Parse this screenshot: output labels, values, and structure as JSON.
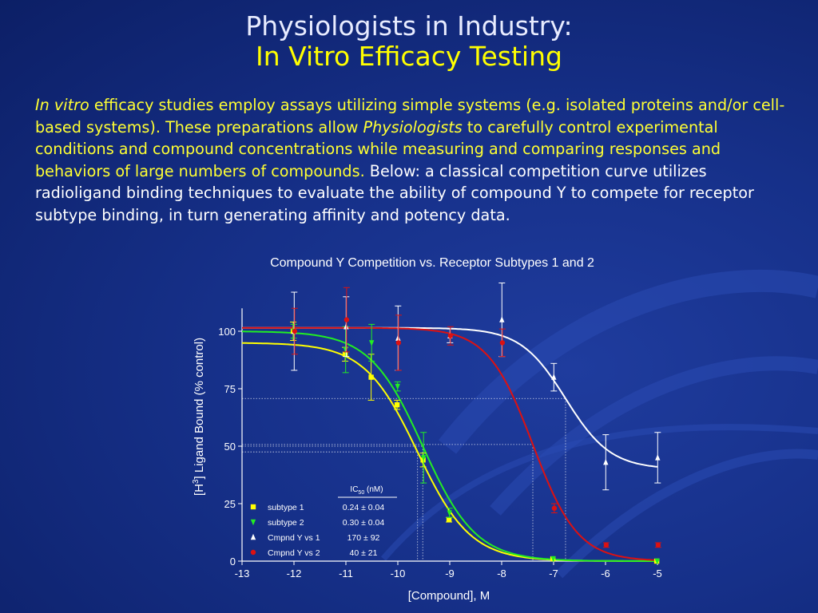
{
  "slide": {
    "title_line1": "Physiologists in Industry:",
    "title_line2": "In Vitro Efficacy Testing",
    "colors": {
      "title": "#e8ecff",
      "subtitle": "#ffff00",
      "highlight": "#ffff33",
      "body": "#ffffff"
    }
  },
  "paragraph": {
    "p1_italic": "In vitro",
    "p2": " efficacy studies employ assays utilizing simple systems (e.g. isolated proteins and/or cell-based systems).  These preparations allow ",
    "p3_italic": "Physiologists",
    "p4": " to carefully control experimental conditions and compound concentrations while measuring and comparing responses and behaviors of large numbers of compounds.",
    "p5": "  Below: a classical competition curve utilizes radioligand binding techniques to evaluate the ability of compound Y to compete for receptor subtype binding, in turn generating affinity and potency data."
  },
  "chart_data": {
    "type": "scatter",
    "title": "Compound Y Competition vs. Receptor Subtypes 1 and 2",
    "xlabel": "[Compound], M",
    "ylabel_pre": "[H",
    "ylabel_sup": "3",
    "ylabel_post": "] Ligand Bound (% control)",
    "xlim": [
      -13,
      -5
    ],
    "ylim": [
      0,
      110
    ],
    "xticks": [
      "-13",
      "-12",
      "-11",
      "-10",
      "-9",
      "-8",
      "-7",
      "-6",
      "-5"
    ],
    "yticks": [
      "0",
      "25",
      "50",
      "75",
      "100"
    ],
    "grid": false,
    "legend_position": "bottom-left",
    "legend_header_pre": "IC",
    "legend_header_sub": "50",
    "legend_header_post": " (nM)",
    "series": [
      {
        "name": "subtype 1",
        "ic50": "0.24 ± 0.04",
        "color": "#ffff00",
        "marker": "square",
        "x": [
          -12,
          -11,
          -10.5,
          -10,
          -9.5,
          -9,
          -7,
          -5
        ],
        "y": [
          100,
          90,
          80,
          68,
          44,
          18,
          1,
          0
        ],
        "err": [
          4,
          3,
          10,
          2,
          3,
          1,
          0.5,
          0.5
        ],
        "fit": {
          "top": 95,
          "bottom": 0,
          "logic50": -9.62,
          "hill": 0.85
        }
      },
      {
        "name": "subtype 2",
        "ic50": "0.30 ± 0.04",
        "color": "#22ee22",
        "marker": "triangle-down",
        "x": [
          -12,
          -11,
          -10.5,
          -10,
          -9.5,
          -9,
          -7,
          -5
        ],
        "y": [
          100,
          92,
          95,
          76,
          45,
          21,
          1,
          0
        ],
        "err": [
          3,
          10,
          8,
          2,
          11,
          2,
          0.5,
          0.5
        ],
        "fit": {
          "top": 100,
          "bottom": 0,
          "logic50": -9.52,
          "hill": 0.85
        }
      },
      {
        "name": "Cmpnd Y vs 1",
        "ic50": "170 ± 92",
        "color": "#ffffff",
        "marker": "triangle-up",
        "x": [
          -12,
          -11,
          -10,
          -9,
          -8,
          -7,
          -6,
          -5
        ],
        "y": [
          100,
          102,
          97,
          98,
          105,
          80,
          43,
          45
        ],
        "err": [
          17,
          13,
          14,
          3,
          16,
          6,
          12,
          11
        ],
        "fit": {
          "top": 101.5,
          "bottom": 40,
          "logic50": -6.77,
          "hill": 1.0
        }
      },
      {
        "name": "Cmpnd Y vs 2",
        "ic50": "40 ± 21",
        "color": "#dd1111",
        "marker": "circle",
        "x": [
          -12,
          -11,
          -10,
          -9,
          -8,
          -7,
          -6,
          -5
        ],
        "y": [
          100,
          105,
          95,
          98,
          95,
          23,
          7,
          7
        ],
        "err": [
          10,
          14,
          12,
          4,
          6,
          2,
          1,
          1
        ],
        "fit": {
          "top": 101.5,
          "bottom": 0,
          "logic50": -7.4,
          "hill": 1.0
        }
      }
    ]
  }
}
